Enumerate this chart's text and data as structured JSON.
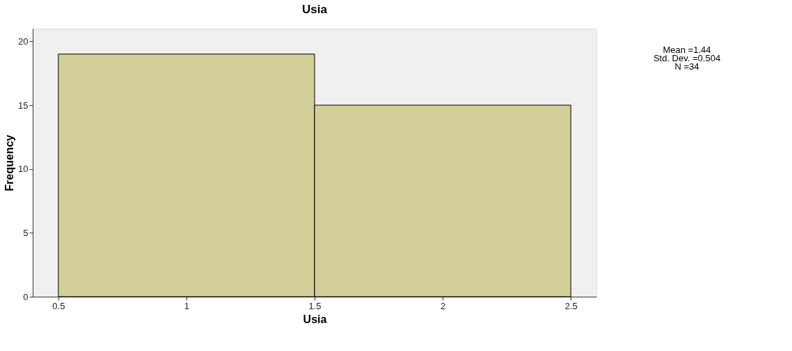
{
  "chart_data": {
    "type": "histogram",
    "title": "Usia",
    "xlabel": "Usia",
    "ylabel": "Frequency",
    "bins": [
      0.5,
      1.5,
      2.5
    ],
    "values": [
      19,
      15
    ],
    "color": "#d3cf98",
    "xlim": [
      0.4,
      2.6
    ],
    "xticks": [
      0.5,
      1,
      1.5,
      2,
      2.5
    ],
    "ylim": [
      0,
      21
    ],
    "yticks": [
      0,
      5,
      10,
      15,
      20
    ],
    "grid": false,
    "annotations": [
      "Mean =1.44",
      "Std. Dev. =0.504",
      "N =34"
    ]
  }
}
